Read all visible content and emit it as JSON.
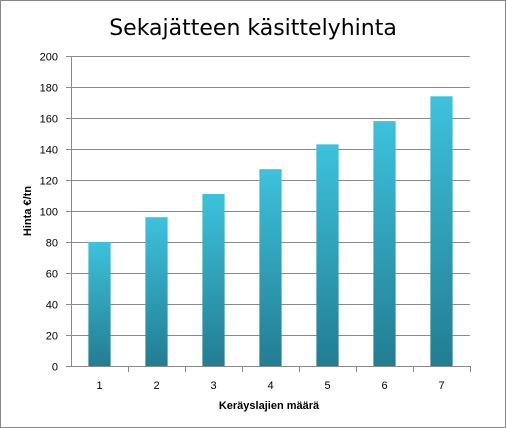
{
  "chart_data": {
    "type": "bar",
    "title": "Sekajätteen käsittelyhinta",
    "xlabel": "Keräyslajien määrä",
    "ylabel": "Hinta €/tn",
    "categories": [
      "1",
      "2",
      "3",
      "4",
      "5",
      "6",
      "7"
    ],
    "values": [
      80,
      96,
      111,
      127,
      143,
      158,
      174
    ],
    "ylim": [
      0,
      200
    ],
    "yticks": [
      "0",
      "20",
      "40",
      "60",
      "80",
      "100",
      "120",
      "140",
      "160",
      "180",
      "200"
    ],
    "grid": true,
    "legend": "none",
    "colors": {
      "bar_top": "#3dc2dd",
      "bar_bottom": "#227d91",
      "grid": "#8a8a8a",
      "axis": "#8a8a8a"
    }
  }
}
